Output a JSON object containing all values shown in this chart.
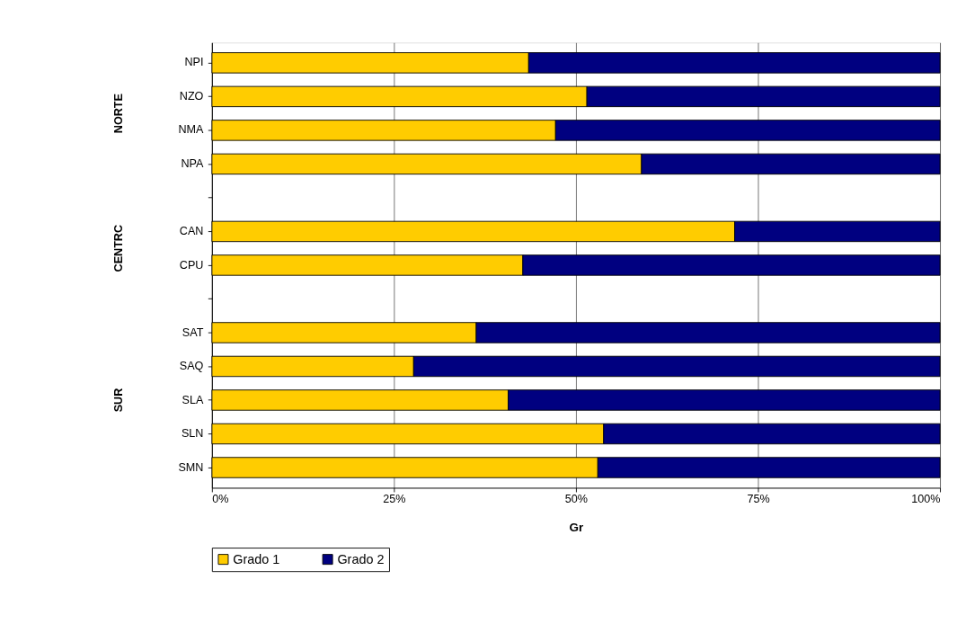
{
  "chart_data": {
    "type": "bar",
    "orientation": "horizontal",
    "stacked": true,
    "categories": [
      "NPI",
      "NZO",
      "NMA",
      "NPA",
      null,
      "CAN",
      "CPU",
      null,
      "SAT",
      "SAQ",
      "SLA",
      "SLN",
      "SMN"
    ],
    "series": [
      {
        "name": "Grado 1",
        "color": "#ffcc00",
        "values": [
          43.5,
          51.5,
          47.2,
          59.0,
          null,
          71.8,
          42.7,
          null,
          36.3,
          27.7,
          40.7,
          53.8,
          53.0
        ]
      },
      {
        "name": "Grado 2",
        "color": "#000080",
        "values": [
          56.5,
          48.5,
          52.8,
          41.0,
          null,
          28.2,
          57.3,
          null,
          63.7,
          72.3,
          59.3,
          46.2,
          47.0
        ]
      }
    ],
    "xlabel": "Gr",
    "xlim": [
      0,
      100
    ],
    "xticks": [
      {
        "value": 0,
        "label": "0%"
      },
      {
        "value": 25,
        "label": "25%"
      },
      {
        "value": 50,
        "label": "50%"
      },
      {
        "value": 75,
        "label": "75%"
      },
      {
        "value": 100,
        "label": "100%"
      }
    ],
    "annotations": [
      "NORTE",
      "CENTRC",
      "SUR"
    ],
    "grid": "x",
    "legend": "bottom"
  }
}
